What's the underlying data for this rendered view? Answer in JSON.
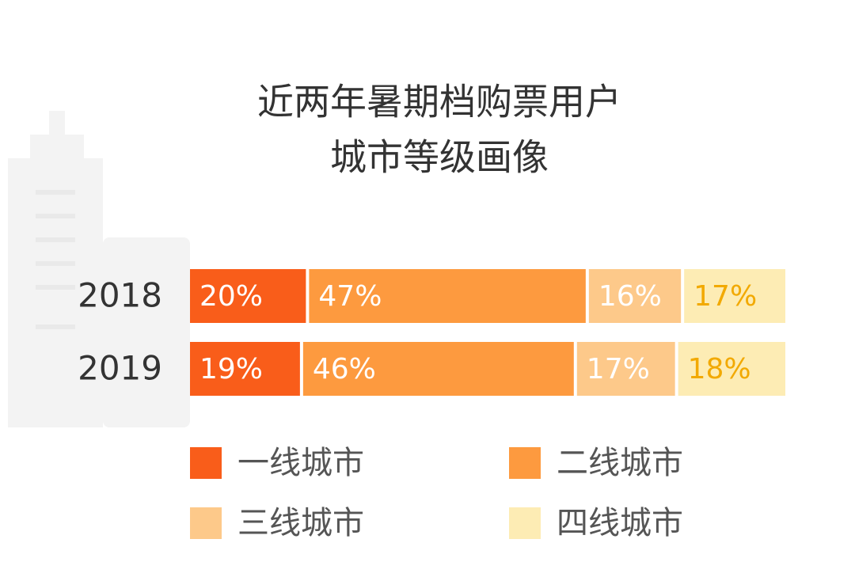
{
  "chart_data": {
    "type": "stacked-bar-horizontal",
    "title": [
      "近两年暑期档购票用户",
      "城市等级画像"
    ],
    "categories": [
      "2018",
      "2019"
    ],
    "series": [
      {
        "name": "一线城市",
        "color": "#f95d1a",
        "label_color": "#ffffff",
        "values": [
          20,
          19
        ],
        "value_labels": [
          "20%",
          "19%"
        ]
      },
      {
        "name": "二线城市",
        "color": "#fd9a3f",
        "label_color": "#ffffff",
        "values": [
          47,
          46
        ],
        "value_labels": [
          "47%",
          "46%"
        ]
      },
      {
        "name": "三线城市",
        "color": "#fdc98a",
        "label_color": "#ffffff",
        "values": [
          16,
          17
        ],
        "value_labels": [
          "16%",
          "17%"
        ]
      },
      {
        "name": "四线城市",
        "color": "#fdecb4",
        "label_color": "#f2a900",
        "values": [
          17,
          18
        ],
        "value_labels": [
          "17%",
          "18%"
        ]
      }
    ]
  }
}
